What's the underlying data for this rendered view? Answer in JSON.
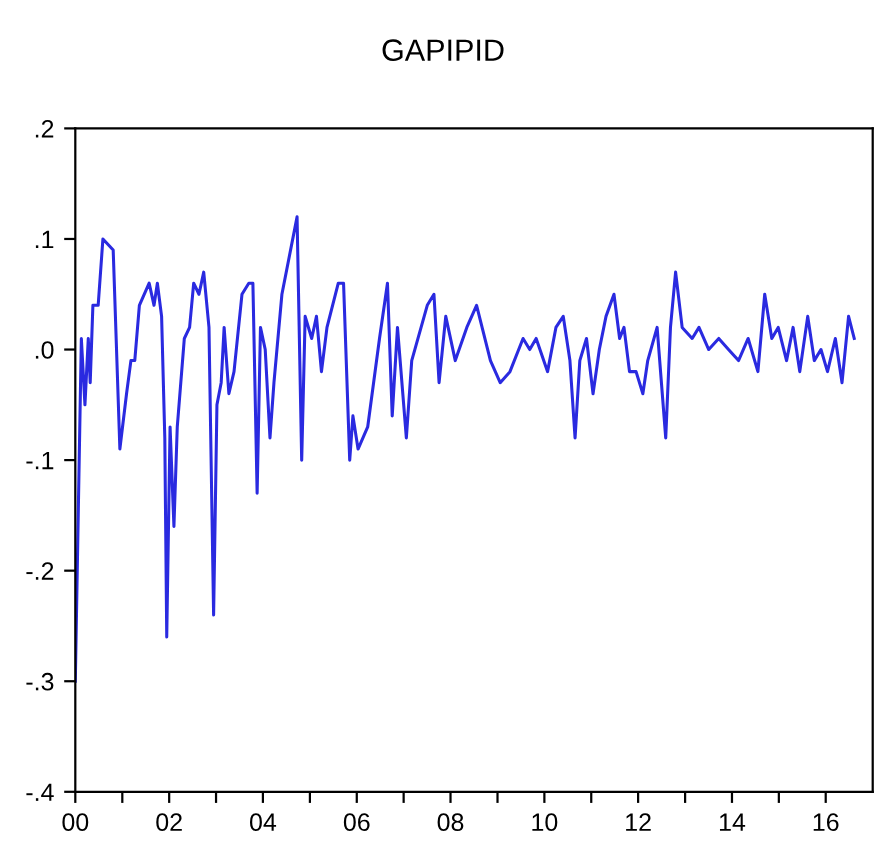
{
  "chart_data": {
    "type": "line",
    "title": "GAPIPID",
    "x": [
      "2000-01-01",
      "2000-02-17",
      "2000-03-16",
      "2000-04-11",
      "2000-04-26",
      "2000-05-17",
      "2000-06-27",
      "2000-08-03",
      "2000-10-22",
      "2000-12-13",
      "2001-02-03",
      "2001-03-09",
      "2001-04-08",
      "2001-05-14",
      "2001-07-29",
      "2001-09-05",
      "2001-10-01",
      "2001-11-03",
      "2001-11-28",
      "2001-12-13",
      "2002-01-08",
      "2002-02-07",
      "2002-03-05",
      "2002-04-29",
      "2002-06-09",
      "2002-07-11",
      "2002-08-21",
      "2002-09-27",
      "2002-11-07",
      "2002-12-13",
      "2003-01-08",
      "2003-02-10",
      "2003-03-05",
      "2003-04-11",
      "2003-05-21",
      "2003-07-22",
      "2003-09-13",
      "2003-10-15",
      "2003-11-17",
      "2003-12-13",
      "2004-01-19",
      "2004-02-25",
      "2004-03-27",
      "2004-05-28",
      "2004-09-23",
      "2004-10-29",
      "2004-11-25",
      "2005-01-15",
      "2005-02-21",
      "2005-04-01",
      "2005-05-14",
      "2005-08-10",
      "2005-09-20",
      "2005-11-07",
      "2005-12-02",
      "2006-01-11",
      "2006-03-27",
      "2006-06-27",
      "2006-08-28",
      "2006-10-04",
      "2006-11-14",
      "2007-01-22",
      "2007-03-05",
      "2007-07-04",
      "2007-08-25",
      "2007-10-04",
      "2007-11-25",
      "2008-02-07",
      "2008-05-07",
      "2008-07-22",
      "2008-11-07",
      "2009-01-22",
      "2009-04-08",
      "2009-07-19",
      "2009-09-09",
      "2009-10-29",
      "2010-01-26",
      "2010-04-01",
      "2010-05-28",
      "2010-07-19",
      "2010-08-28",
      "2010-10-04",
      "2010-11-25",
      "2011-01-15",
      "2011-03-05",
      "2011-04-26",
      "2011-06-27",
      "2011-08-10",
      "2011-09-13",
      "2011-10-26",
      "2011-12-16",
      "2012-02-07",
      "2012-03-16",
      "2012-05-28",
      "2012-08-03",
      "2012-09-09",
      "2012-10-19",
      "2012-12-09",
      "2013-02-25",
      "2013-04-19",
      "2013-07-04",
      "2013-09-20",
      "2013-12-05",
      "2014-02-21",
      "2014-05-07",
      "2014-07-22",
      "2014-09-13",
      "2014-11-07",
      "2014-12-27",
      "2015-03-02",
      "2015-04-22",
      "2015-06-13",
      "2015-08-14",
      "2015-10-04",
      "2015-11-25",
      "2016-01-15",
      "2016-03-16",
      "2016-05-07",
      "2016-06-27",
      "2016-08-10"
    ],
    "series": [
      {
        "color": "#2a2ae0",
        "values": [
          -0.3,
          0.01,
          -0.05,
          0.01,
          -0.03,
          0.04,
          0.04,
          0.1,
          0.09,
          -0.09,
          -0.04,
          -0.01,
          -0.01,
          0.04,
          0.06,
          0.04,
          0.06,
          0.03,
          -0.08,
          -0.26,
          -0.07,
          -0.16,
          -0.07,
          0.01,
          0.02,
          0.06,
          0.05,
          0.07,
          0.02,
          -0.24,
          -0.05,
          -0.03,
          0.02,
          -0.04,
          -0.02,
          0.05,
          0.06,
          0.06,
          -0.13,
          0.02,
          0.0,
          -0.08,
          -0.03,
          0.05,
          0.12,
          -0.1,
          0.03,
          0.01,
          0.03,
          -0.02,
          0.02,
          0.06,
          0.06,
          -0.1,
          -0.06,
          -0.09,
          -0.07,
          0.01,
          0.06,
          -0.06,
          0.02,
          -0.08,
          -0.01,
          0.04,
          0.05,
          -0.03,
          0.03,
          -0.01,
          0.02,
          0.04,
          -0.01,
          -0.03,
          -0.02,
          0.01,
          0.0,
          0.01,
          -0.02,
          0.02,
          0.03,
          -0.01,
          -0.08,
          -0.01,
          0.01,
          -0.04,
          0.0,
          0.03,
          0.05,
          0.01,
          0.02,
          -0.02,
          -0.02,
          -0.04,
          -0.01,
          0.02,
          -0.08,
          0.02,
          0.07,
          0.02,
          0.01,
          0.02,
          0.0,
          0.01,
          0.0,
          -0.01,
          0.01,
          -0.02,
          0.05,
          0.01,
          0.02,
          -0.01,
          0.02,
          -0.02,
          0.03,
          -0.01,
          0.0,
          -0.02,
          0.01,
          -0.03,
          0.03,
          0.01
        ]
      }
    ],
    "xlim": [
      "2000",
      "2017"
    ],
    "xticks": [
      {
        "value": "2000",
        "label": "00"
      },
      {
        "value": "2001",
        "label": null
      },
      {
        "value": "2002",
        "label": "02"
      },
      {
        "value": "2003",
        "label": null
      },
      {
        "value": "2004",
        "label": "04"
      },
      {
        "value": "2005",
        "label": null
      },
      {
        "value": "2006",
        "label": "06"
      },
      {
        "value": "2007",
        "label": null
      },
      {
        "value": "2008",
        "label": "08"
      },
      {
        "value": "2009",
        "label": null
      },
      {
        "value": "2010",
        "label": "10"
      },
      {
        "value": "2011",
        "label": null
      },
      {
        "value": "2012",
        "label": "12"
      },
      {
        "value": "2013",
        "label": null
      },
      {
        "value": "2014",
        "label": "14"
      },
      {
        "value": "2015",
        "label": null
      },
      {
        "value": "2016",
        "label": "16"
      }
    ],
    "ylim": [
      -0.4,
      0.2
    ],
    "yticks": [
      {
        "value": -0.4,
        "label": "-.4"
      },
      {
        "value": -0.3,
        "label": "-.3"
      },
      {
        "value": -0.2,
        "label": "-.2"
      },
      {
        "value": -0.1,
        "label": "-.1"
      },
      {
        "value": 0.0,
        "label": ".0"
      },
      {
        "value": 0.1,
        "label": ".1"
      },
      {
        "value": 0.2,
        "label": ".2"
      }
    ],
    "grid": false,
    "line_style": "solid",
    "marker": "none"
  }
}
